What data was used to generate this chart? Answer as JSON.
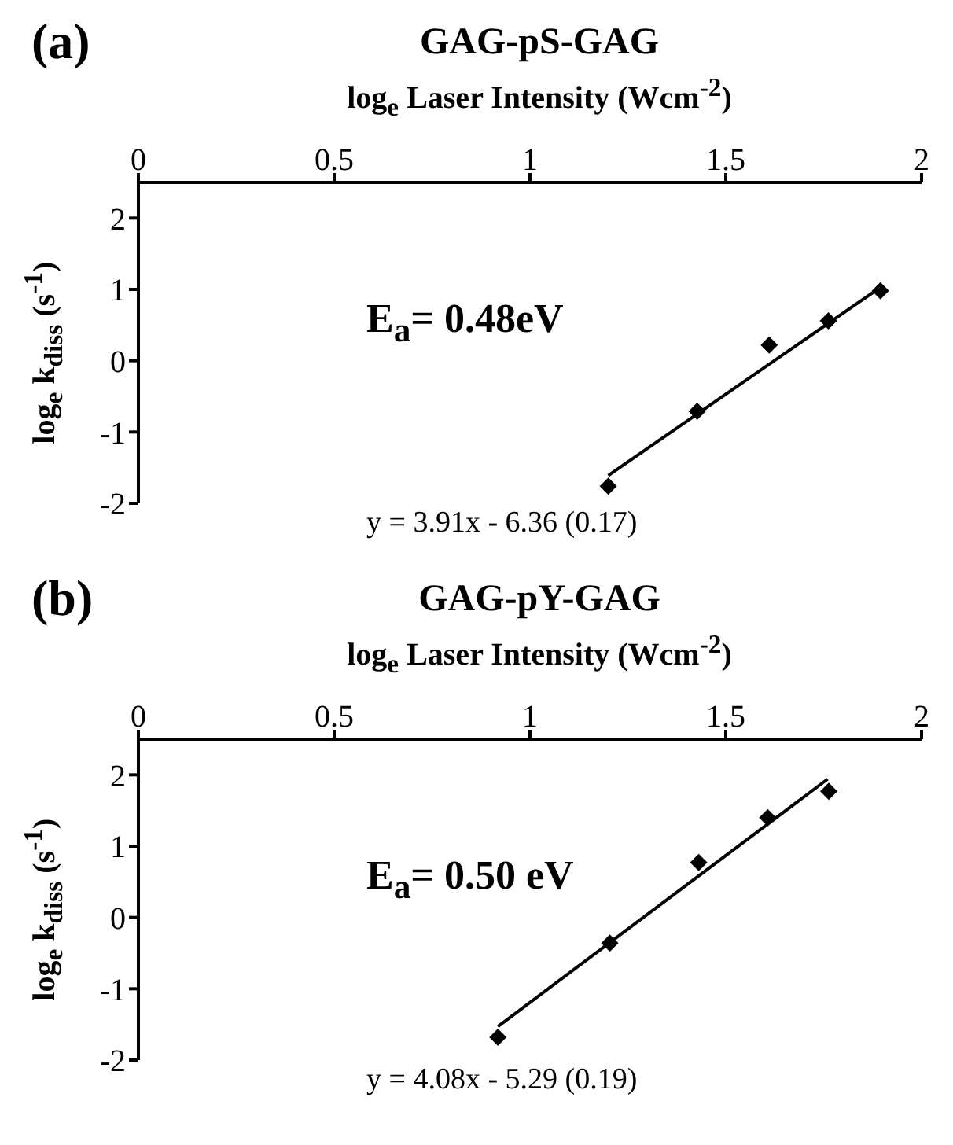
{
  "chart_data": [
    {
      "type": "scatter",
      "title": "GAG-pS-GAG",
      "xlabel": "log$_{e}$ Laser Intensity (Wcm$^{-2}$)",
      "ylabel": "log$_{e}$ k$_{diss}$ (s$^{-1}$)",
      "annotations": [
        "(a)",
        "E$_{a}$= 0.48eV",
        "y = 3.91x - 6.36 (0.17)"
      ],
      "xlim": [
        0,
        2
      ],
      "xticks": [
        0,
        0.5,
        1,
        1.5,
        2
      ],
      "ylim": [
        -2,
        2.5
      ],
      "yticks": [
        -2,
        -1,
        0,
        1,
        2
      ],
      "grid": false,
      "legend": false,
      "series": [
        {
          "marker": "diamond",
          "color": "#000000",
          "x": [
            1.2,
            1.427,
            1.611,
            1.762,
            1.895
          ],
          "values": [
            -1.76,
            -0.71,
            0.22,
            0.56,
            0.98
          ]
        },
        {
          "type": "line",
          "marker": "none",
          "color": "#000000",
          "x": [
            1.2,
            1.895
          ],
          "values": [
            -1.61,
            1.03
          ]
        }
      ]
    },
    {
      "type": "scatter",
      "title": "GAG-pY-GAG",
      "xlabel": "log$_{e}$ Laser Intensity (Wcm$^{-2}$)",
      "ylabel": "log$_{e}$ k$_{diss}$ (s$^{-1}$)",
      "annotations": [
        "(b)",
        "E$_{a}$= 0.50 eV",
        "y = 4.08x - 5.29 (0.19)"
      ],
      "xlim": [
        0,
        2
      ],
      "xticks": [
        0,
        0.5,
        1,
        1.5,
        2
      ],
      "ylim": [
        -2,
        2.5
      ],
      "yticks": [
        -2,
        -1,
        0,
        1,
        2
      ],
      "grid": false,
      "legend": false,
      "series": [
        {
          "marker": "diamond",
          "color": "#000000",
          "x": [
            0.918,
            1.204,
            1.431,
            1.607,
            1.763
          ],
          "values": [
            -1.68,
            -0.36,
            0.77,
            1.4,
            1.77
          ]
        },
        {
          "type": "line",
          "marker": "none",
          "color": "#000000",
          "x": [
            0.918,
            1.76
          ],
          "values": [
            -1.53,
            1.94
          ]
        }
      ]
    }
  ]
}
